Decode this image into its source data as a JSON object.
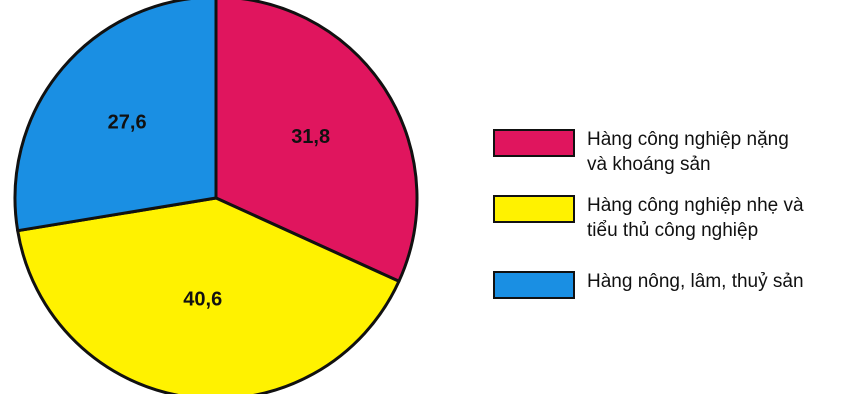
{
  "chart_data": {
    "type": "pie",
    "title": "",
    "unit": "",
    "slices": [
      {
        "label_line1": "Hàng công nghiệp nặng",
        "label_line2": "và khoáng sản",
        "value": 31.8,
        "value_text": "31,8",
        "color": "#e0155e"
      },
      {
        "label_line1": "Hàng công nghiệp nhẹ và",
        "label_line2": "tiểu thủ công nghiệp",
        "value": 40.6,
        "value_text": "40,6",
        "color": "#fff200"
      },
      {
        "label_line1": "Hàng nông, lâm, thuỷ sản",
        "label_line2": "",
        "value": 27.6,
        "value_text": "27,6",
        "color": "#1a8fe3"
      }
    ],
    "start_angle": "12 o'clock",
    "direction": "clockwise",
    "legend_placement": "right"
  }
}
